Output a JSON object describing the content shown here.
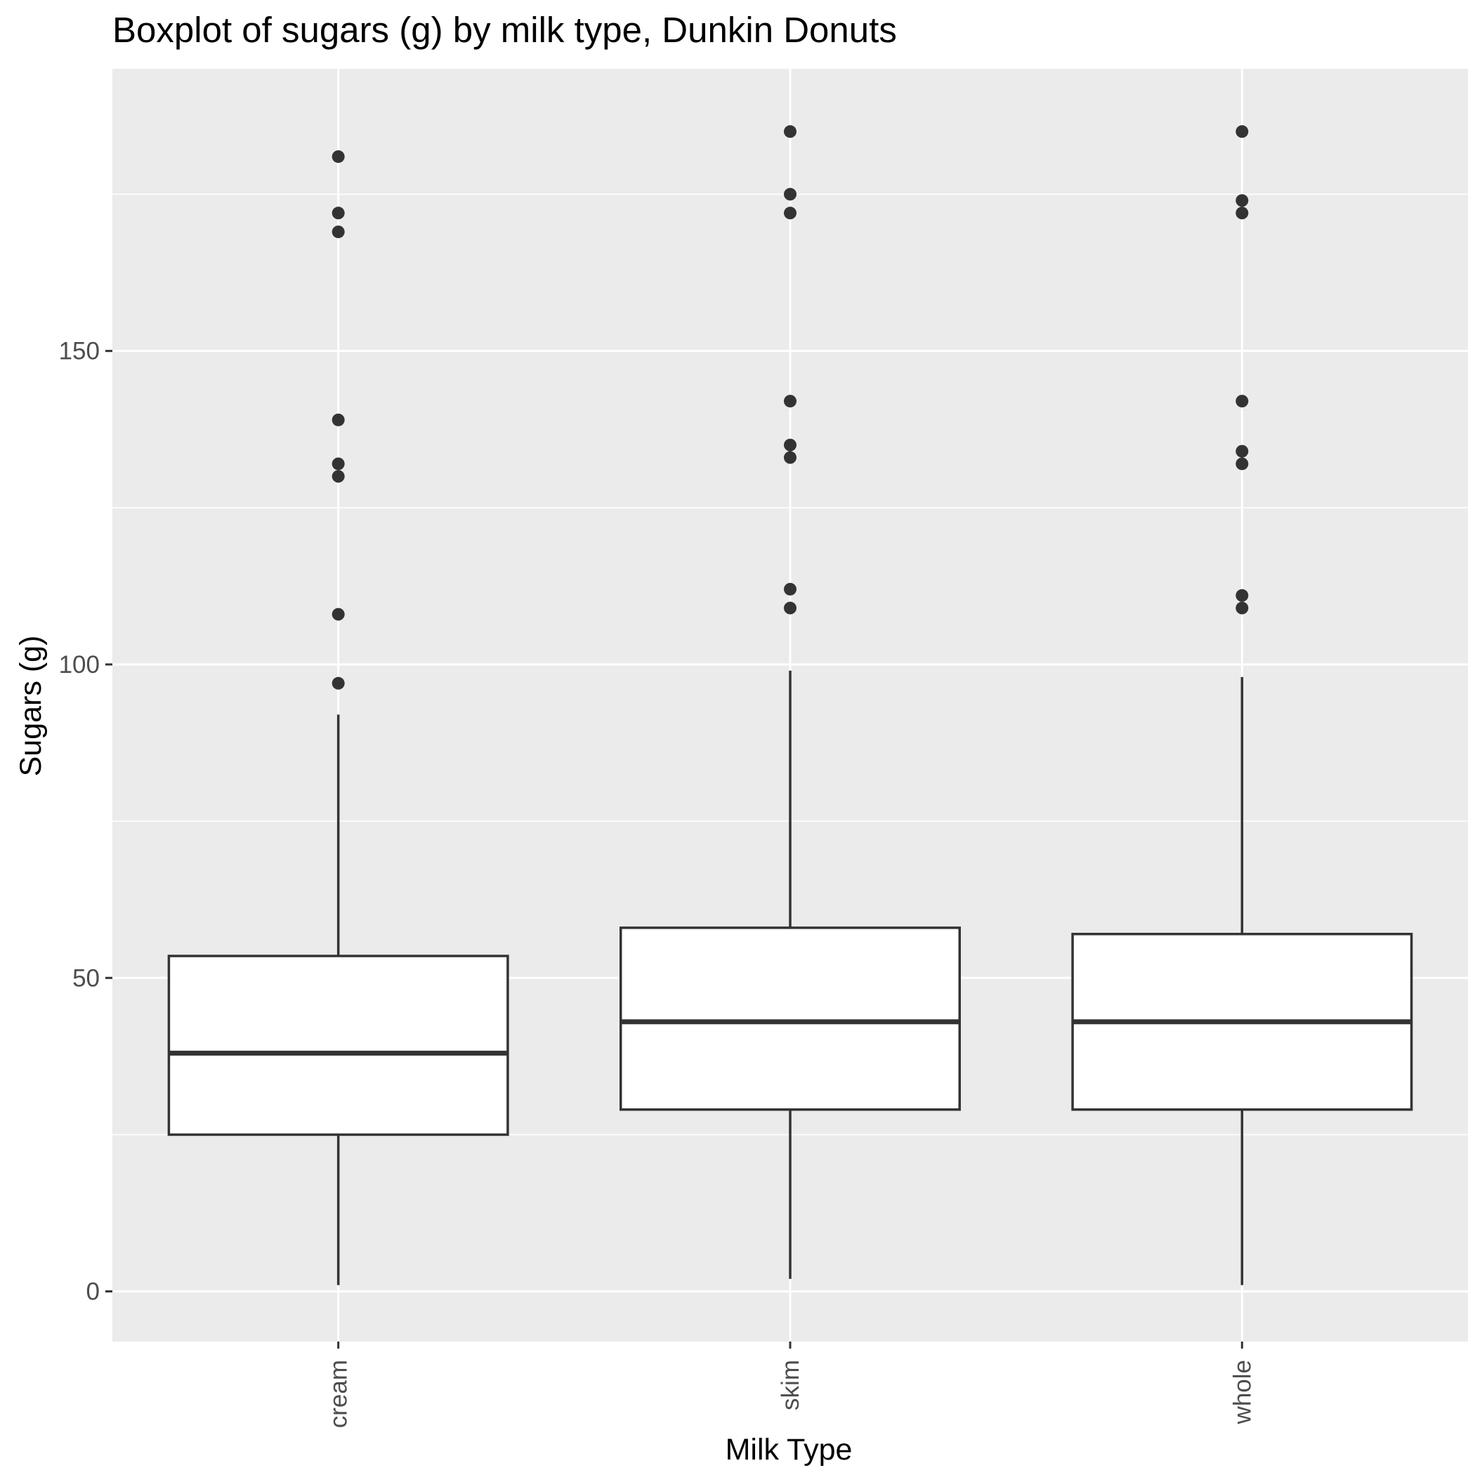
{
  "chart_data": {
    "type": "boxplot",
    "title": "Boxplot of sugars (g) by milk type, Dunkin Donuts",
    "xlabel": "Milk Type",
    "ylabel": "Sugars (g)",
    "ylim": [
      -8,
      195
    ],
    "yticks": [
      0,
      50,
      100,
      150
    ],
    "ytick_labels": [
      "0",
      "50",
      "100",
      "150"
    ],
    "grid": true,
    "categories": [
      "cream",
      "skim",
      "whole"
    ],
    "boxes": [
      {
        "category": "cream",
        "whisker_low": 1,
        "q1": 25,
        "median": 38,
        "q3": 53.5,
        "whisker_high": 92,
        "outliers": [
          97,
          108,
          130,
          132,
          139,
          169,
          172,
          181
        ]
      },
      {
        "category": "skim",
        "whisker_low": 2,
        "q1": 29,
        "median": 43,
        "q3": 58,
        "whisker_high": 99,
        "outliers": [
          109,
          112,
          133,
          135,
          142,
          172,
          175,
          185
        ]
      },
      {
        "category": "whole",
        "whisker_low": 1,
        "q1": 29,
        "median": 43,
        "q3": 57,
        "whisker_high": 98,
        "outliers": [
          109,
          111,
          132,
          134,
          142,
          172,
          174,
          185
        ]
      }
    ],
    "colors": {
      "panel_background": "#ebebeb",
      "grid": "#ffffff",
      "box_fill": "#ffffff",
      "box_stroke": "#333333",
      "tick": "#333333"
    }
  }
}
